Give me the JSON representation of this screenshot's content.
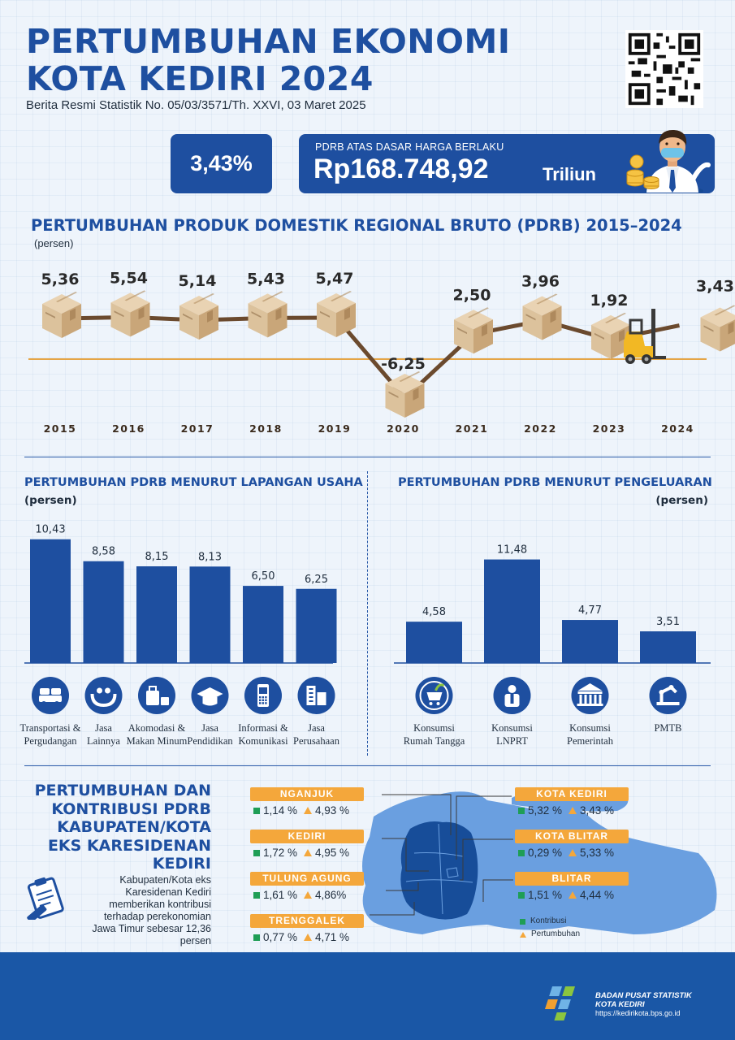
{
  "header": {
    "title_line1": "PERTUMBUHAN EKONOMI",
    "title_line2": "KOTA KEDIRI 2024",
    "subtitle": "Berita Resmi Statistik No. 05/03/3571/Th. XXVI, 03 Maret 2025"
  },
  "highlights": {
    "growth": "3,43%",
    "pdrb_label": "PDRB ATAS DASAR HARGA BERLAKU",
    "pdrb_value": "Rp168.748,92",
    "pdrb_unit": "Triliun"
  },
  "colors": {
    "primary": "#1e4fa0",
    "bar": "#1e4fa0",
    "accent_orange": "#f4a73b",
    "line": "#6b4a2e",
    "contribution": "#1f9e56",
    "map_light": "#6a9fe0",
    "map_dark": "#174d99"
  },
  "chart_data": [
    {
      "type": "line",
      "title": "PERTUMBUHAN PRODUK DOMESTIK REGIONAL BRUTO (PDRB) 2015–2024",
      "ylabel": "(persen)",
      "x": [
        "2015",
        "2016",
        "2017",
        "2018",
        "2019",
        "2020",
        "2021",
        "2022",
        "2023",
        "2024"
      ],
      "values": [
        5.36,
        5.54,
        5.14,
        5.43,
        5.47,
        -6.25,
        2.5,
        3.96,
        1.92,
        3.43
      ],
      "labels": [
        "5,36",
        "5,54",
        "5,14",
        "5,43",
        "5,47",
        "-6,25",
        "2,50",
        "3,96",
        "1,92",
        "3,43"
      ],
      "marker_icon": "box-icon"
    },
    {
      "type": "bar",
      "title": "PERTUMBUHAN PDRB MENURUT LAPANGAN USAHA",
      "ylabel": "(persen)",
      "categories": [
        "Transportasi & Pergudangan",
        "Jasa Lainnya",
        "Akomodasi & Makan Minum",
        "Jasa Pendidikan",
        "Informasi & Komunikasi",
        "Jasa Perusahaan"
      ],
      "category_lines": [
        [
          "Transportasi &",
          "Pergudangan"
        ],
        [
          "Jasa",
          "Lainnya"
        ],
        [
          "Akomodasi &",
          "Makan Minum"
        ],
        [
          "Jasa",
          "Pendidikan"
        ],
        [
          "Informasi &",
          "Komunikasi"
        ],
        [
          "Jasa",
          "Perusahaan"
        ]
      ],
      "values": [
        10.43,
        8.58,
        8.15,
        8.13,
        6.5,
        6.25
      ],
      "labels": [
        "10,43",
        "8,58",
        "8,15",
        "8,13",
        "6,50",
        "6,25"
      ],
      "icons": [
        "transport-icon",
        "hands-people-icon",
        "luggage-icon",
        "graduation-cap-icon",
        "phone-icon",
        "building-icon"
      ]
    },
    {
      "type": "bar",
      "title": "PERTUMBUHAN PDRB MENURUT PENGELUARAN",
      "ylabel": "(persen)",
      "categories": [
        "Konsumsi Rumah Tangga",
        "Konsumsi LNPRT",
        "Konsumsi Pemerintah",
        "PMTB"
      ],
      "category_lines": [
        [
          "Konsumsi",
          "Rumah Tangga"
        ],
        [
          "Konsumsi",
          "LNPRT"
        ],
        [
          "Konsumsi",
          "Pemerintah"
        ],
        [
          "PMTB"
        ]
      ],
      "values": [
        4.58,
        11.48,
        4.77,
        3.51
      ],
      "labels": [
        "4,58",
        "11,48",
        "4,77",
        "3,51"
      ],
      "icons": [
        "shopping-icon",
        "person-icon",
        "government-building-icon",
        "robot-arm-icon"
      ]
    }
  ],
  "map_section": {
    "title_lines": [
      "PERTUMBUHAN DAN",
      "KONTRIBUSI PDRB",
      "KABUPATEN/KOTA",
      "EKS KARESIDENAN",
      "KEDIRI"
    ],
    "note": "Kabupaten/Kota eks Karesidenan Kediri memberikan kontribusi terhadap perekonomian Jawa Timur sebesar 12,36 persen",
    "regions": [
      {
        "name": "NGANJUK",
        "contribution": "1,14 %",
        "growth": "4,93 %"
      },
      {
        "name": "KEDIRI",
        "contribution": "1,72 %",
        "growth": "4,95 %"
      },
      {
        "name": "TULUNG AGUNG",
        "contribution": "1,61 %",
        "growth": "4,86%"
      },
      {
        "name": "TRENGGALEK",
        "contribution": "0,77 %",
        "growth": "4,71 %"
      },
      {
        "name": "KOTA KEDIRI",
        "contribution": "5,32 %",
        "growth": "3,43 %"
      },
      {
        "name": "KOTA BLITAR",
        "contribution": "0,29 %",
        "growth": "5,33 %"
      },
      {
        "name": "BLITAR",
        "contribution": "1,51 %",
        "growth": "4,44 %"
      }
    ],
    "legend": {
      "contribution": "Kontribusi",
      "growth": "Pertumbuhan"
    }
  },
  "footer": {
    "org_line1": "BADAN PUSAT STATISTIK",
    "org_line2": "KOTA KEDIRI",
    "url": "https://kedirikota.bps.go.id"
  }
}
